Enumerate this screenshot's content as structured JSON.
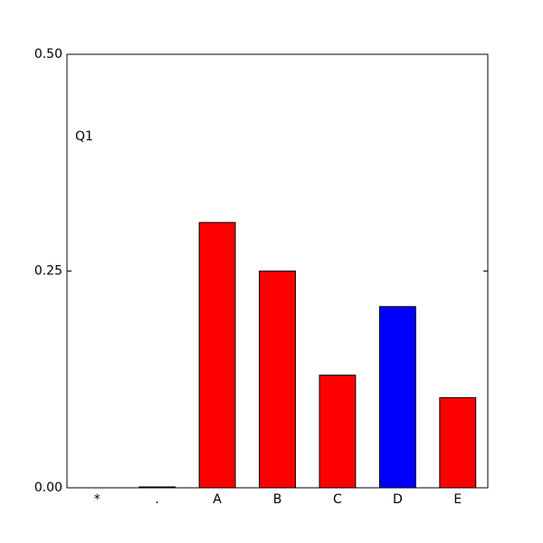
{
  "chart_data": {
    "type": "bar",
    "annotation": "Q1",
    "categories": [
      "*",
      ".",
      "A",
      "B",
      "C",
      "D",
      "E"
    ],
    "values": [
      0,
      0.001,
      0.306,
      0.25,
      0.13,
      0.209,
      0.104
    ],
    "colors": [
      "#ff0000",
      "#ff0000",
      "#ff0000",
      "#ff0000",
      "#ff0000",
      "#0000ff",
      "#ff0000"
    ],
    "ylim": [
      0,
      0.5
    ],
    "yticks": [
      {
        "value": 0,
        "label": "0.00"
      },
      {
        "value": 0.25,
        "label": "0.25"
      },
      {
        "value": 0.5,
        "label": "0.50"
      }
    ],
    "grid": false
  }
}
